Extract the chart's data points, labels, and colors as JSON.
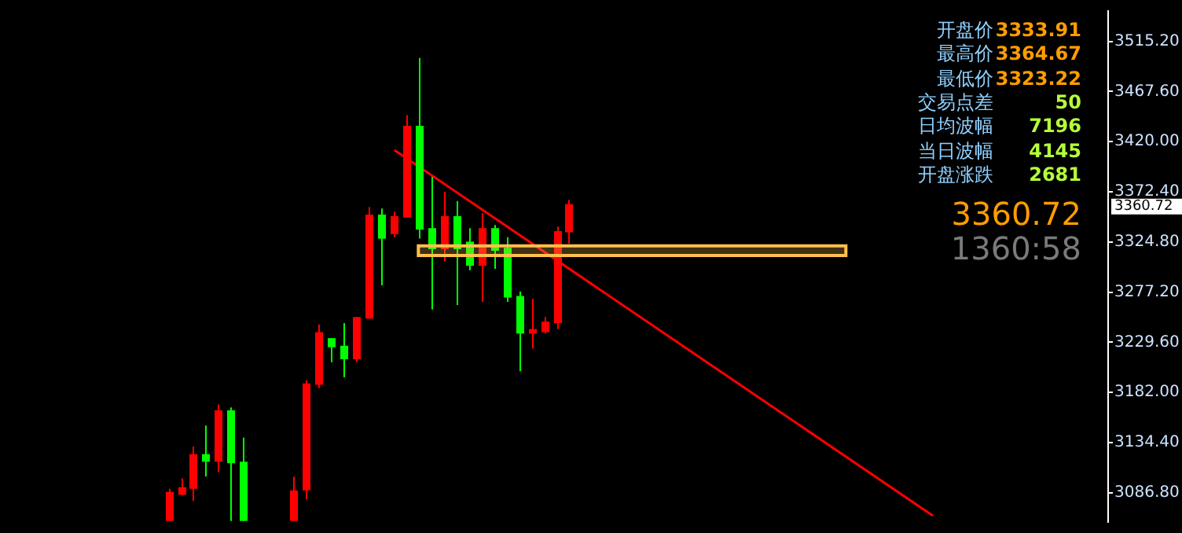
{
  "chart_data": {
    "type": "candlestick",
    "categories": [
      null,
      null,
      null,
      null,
      null,
      null,
      null,
      null,
      null,
      null,
      null,
      null,
      null,
      null,
      null,
      null,
      null,
      null,
      null,
      null,
      null,
      null,
      null,
      null,
      null,
      null,
      null,
      null,
      null,
      null,
      null,
      null,
      null,
      null,
      null,
      null,
      null,
      null,
      null,
      null,
      null,
      null,
      null,
      null,
      null,
      null,
      null,
      null,
      null,
      null,
      null,
      null,
      null,
      null,
      null,
      null,
      null,
      null,
      null,
      null,
      null,
      null,
      null,
      null,
      null,
      null,
      null,
      null,
      null,
      null,
      null,
      null,
      null,
      null,
      null,
      null,
      null,
      null,
      null,
      null,
      null,
      null,
      null,
      null,
      null,
      null,
      null,
      null,
      null
    ],
    "ohlc": [
      null,
      null,
      null,
      null,
      null,
      null,
      null,
      null,
      null,
      null,
      null,
      null,
      null,
      [
        3060,
        3090.5,
        3060,
        3087.6
      ],
      [
        3084.8,
        3100.5,
        3084.8,
        3092
      ],
      [
        3090.5,
        3130.6,
        3079,
        3123.4
      ],
      [
        3123.4,
        3150.6,
        3102,
        3116.2
      ],
      [
        3116.2,
        3170.6,
        3106.3,
        3165
      ],
      [
        3165,
        3167.7,
        3060,
        3114.8
      ],
      [
        3116.2,
        3139.1,
        3060,
        3060
      ],
      null,
      null,
      null,
      [
        3060,
        3102,
        3060,
        3089
      ],
      [
        3089,
        3193.5,
        3080.5,
        3190.6
      ],
      [
        3189.2,
        3246.4,
        3186.3,
        3239.2
      ],
      [
        3233.5,
        3233.5,
        3210.6,
        3224.9
      ],
      [
        3226.3,
        3247.8,
        3196.3,
        3213.5
      ],
      [
        3213.5,
        3253.5,
        3210.6,
        3253.5
      ],
      [
        3252.1,
        3357.9,
        3252.1,
        3350.8
      ],
      [
        3350.8,
        3356.5,
        3283.6,
        3327.9
      ],
      [
        3332.2,
        3353.6,
        3329.3,
        3349.3
      ],
      [
        3347.9,
        3445.1,
        3347.9,
        3435.1
      ],
      [
        3435.1,
        3499.5,
        3328,
        3336.5
      ],
      [
        3337.9,
        3386.5,
        3260.7,
        3317.9
      ],
      [
        3317.9,
        3372.2,
        3306.4,
        3349.3
      ],
      [
        3349.3,
        3363.6,
        3265,
        3317.9
      ],
      [
        3325.1,
        3337.9,
        3297.9,
        3302.2
      ],
      [
        3302.2,
        3352.2,
        3267.9,
        3337.9
      ],
      [
        3337.9,
        3340.8,
        3299.3,
        3316.4
      ],
      [
        3319.3,
        3329.3,
        3267.9,
        3272.1
      ],
      [
        3273.5,
        3277.8,
        3202,
        3237.8
      ],
      [
        3237.8,
        3270.7,
        3223.5,
        3242.1
      ],
      [
        3239.2,
        3253.5,
        3237.8,
        3249.2
      ],
      [
        3247.8,
        3339.3,
        3242.1,
        3335
      ],
      [
        3333.91,
        3364.67,
        3323.22,
        3360.72
      ],
      null,
      null,
      null,
      null,
      null,
      null,
      null,
      null,
      null,
      null,
      null,
      null,
      null,
      null,
      null,
      null,
      null,
      null,
      null,
      null,
      null,
      null,
      null,
      null,
      null,
      null,
      null,
      null,
      null,
      null,
      null,
      null,
      null,
      null,
      null,
      null,
      null,
      null,
      null,
      null,
      null,
      null,
      null
    ],
    "colors": [
      null,
      null,
      null,
      null,
      null,
      null,
      null,
      null,
      null,
      null,
      null,
      null,
      null,
      "#ff0000",
      "#ff0000",
      "#ff0000",
      "#00ff00",
      "#ff0000",
      "#00ff00",
      "#00ff00",
      null,
      null,
      null,
      "#ff0000",
      "#ff0000",
      "#ff0000",
      "#00ff00",
      "#00ff00",
      "#ff0000",
      "#ff0000",
      "#00ff00",
      "#ff0000",
      "#ff0000",
      "#00ff00",
      "#00ff00",
      "#ff0000",
      "#00ff00",
      "#00ff00",
      "#ff0000",
      "#00ff00",
      "#00ff00",
      "#00ff00",
      "#ff0000",
      "#ff0000",
      "#ff0000",
      "#ff0000",
      null,
      null,
      null,
      null,
      null,
      null,
      null,
      null,
      null,
      null,
      null,
      null,
      null,
      null,
      null,
      null,
      null,
      null,
      null,
      null,
      null,
      null,
      null,
      null,
      null,
      null,
      null,
      null,
      null,
      null,
      null,
      null,
      null,
      null,
      null,
      null,
      null,
      null,
      null,
      null,
      null,
      null,
      null
    ],
    "series": [
      {
        "type": "line",
        "color": "#ff0000",
        "values": [
          null,
          null,
          null,
          null,
          null,
          null,
          null,
          null,
          null,
          null,
          null,
          null,
          null,
          null,
          null,
          null,
          null,
          null,
          null,
          null,
          null,
          null,
          null,
          null,
          null,
          null,
          null,
          null,
          null,
          null,
          null,
          3412,
          null,
          null,
          null,
          null,
          null,
          null,
          null,
          null,
          null,
          null,
          null,
          null,
          null,
          null,
          null,
          null,
          null,
          null,
          null,
          null,
          null,
          null,
          null,
          null,
          null,
          null,
          null,
          null,
          null,
          null,
          null,
          null,
          null,
          null,
          null,
          null,
          null,
          null,
          null,
          null,
          null,
          null,
          3065,
          null,
          null,
          null,
          null,
          null,
          null,
          null,
          null,
          null,
          null,
          null,
          null,
          null,
          null
        ]
      }
    ],
    "ylim": [
      3059,
      3544
    ],
    "yticks": [
      {
        "value": 3515.2,
        "label": "3515.20"
      },
      {
        "value": 3467.6,
        "label": "3467.60"
      },
      {
        "value": 3420,
        "label": "3420.00"
      },
      {
        "value": 3372.4,
        "label": "3372.40"
      },
      {
        "value": 3324.8,
        "label": "3324.80"
      },
      {
        "value": 3277.2,
        "label": "3277.20"
      },
      {
        "value": 3229.6,
        "label": "3229.60"
      },
      {
        "value": 3182,
        "label": "3182.00"
      },
      {
        "value": 3134.4,
        "label": "3134.40"
      },
      {
        "value": 3086.8,
        "label": "3086.80"
      }
    ],
    "bands": [
      {
        "axis": "y",
        "from": 3312,
        "to": 3321,
        "color": "#ffc04d"
      }
    ],
    "annotations": [
      "开盘价",
      "3333.91",
      "最高价",
      "3364.67",
      "最低价",
      "3323.22",
      "交易点差",
      "50",
      "日均波幅",
      "7196",
      "当日波幅",
      "4145",
      "开盘涨跌",
      "2681",
      "3360.72",
      "1360:58",
      "3360.72"
    ],
    "grid": false,
    "legend": false,
    "tick_labels": "y"
  }
}
